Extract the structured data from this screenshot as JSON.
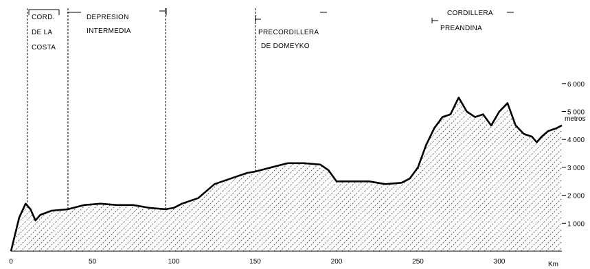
{
  "regions": [
    {
      "lines": [
        "CORD.",
        "DE LA",
        "COSTA"
      ]
    },
    {
      "lines": [
        "DEPRESION",
        "INTERMEDIA"
      ]
    },
    {
      "lines": [
        "PRECORDILLERA",
        "DE DOMEYKO"
      ]
    },
    {
      "lines": [
        "CORDILLERA",
        "PREANDINA"
      ]
    }
  ],
  "chart_data": {
    "type": "area",
    "title": "",
    "xlabel": "Km",
    "ylabel": "metros",
    "xlim": [
      0,
      330
    ],
    "ylim": [
      0,
      6000
    ],
    "x_ticks": [
      "0",
      "50",
      "100",
      "150",
      "200",
      "250",
      "300"
    ],
    "y_ticks": [
      "1 000",
      "2 000",
      "3 000",
      "4 000",
      "5 000",
      "6 000"
    ],
    "dividers_km": [
      10,
      35,
      95,
      150
    ],
    "profile": [
      [
        0,
        0
      ],
      [
        5,
        1200
      ],
      [
        9,
        1700
      ],
      [
        12,
        1500
      ],
      [
        15,
        1100
      ],
      [
        18,
        1300
      ],
      [
        25,
        1450
      ],
      [
        35,
        1500
      ],
      [
        45,
        1650
      ],
      [
        55,
        1700
      ],
      [
        65,
        1650
      ],
      [
        75,
        1650
      ],
      [
        85,
        1550
      ],
      [
        95,
        1500
      ],
      [
        100,
        1550
      ],
      [
        105,
        1700
      ],
      [
        115,
        1900
      ],
      [
        125,
        2400
      ],
      [
        135,
        2600
      ],
      [
        145,
        2800
      ],
      [
        150,
        2850
      ],
      [
        160,
        3000
      ],
      [
        170,
        3150
      ],
      [
        180,
        3150
      ],
      [
        190,
        3100
      ],
      [
        195,
        2900
      ],
      [
        200,
        2500
      ],
      [
        210,
        2500
      ],
      [
        220,
        2500
      ],
      [
        230,
        2400
      ],
      [
        240,
        2450
      ],
      [
        245,
        2600
      ],
      [
        250,
        3000
      ],
      [
        255,
        3800
      ],
      [
        260,
        4400
      ],
      [
        265,
        4800
      ],
      [
        270,
        4900
      ],
      [
        275,
        5500
      ],
      [
        280,
        5000
      ],
      [
        285,
        4800
      ],
      [
        290,
        4900
      ],
      [
        295,
        4500
      ],
      [
        300,
        5000
      ],
      [
        305,
        5300
      ],
      [
        310,
        4500
      ],
      [
        315,
        4200
      ],
      [
        320,
        4100
      ],
      [
        323,
        3900
      ],
      [
        326,
        4100
      ],
      [
        330,
        4300
      ],
      [
        335,
        4400
      ],
      [
        340,
        4500
      ]
    ]
  }
}
